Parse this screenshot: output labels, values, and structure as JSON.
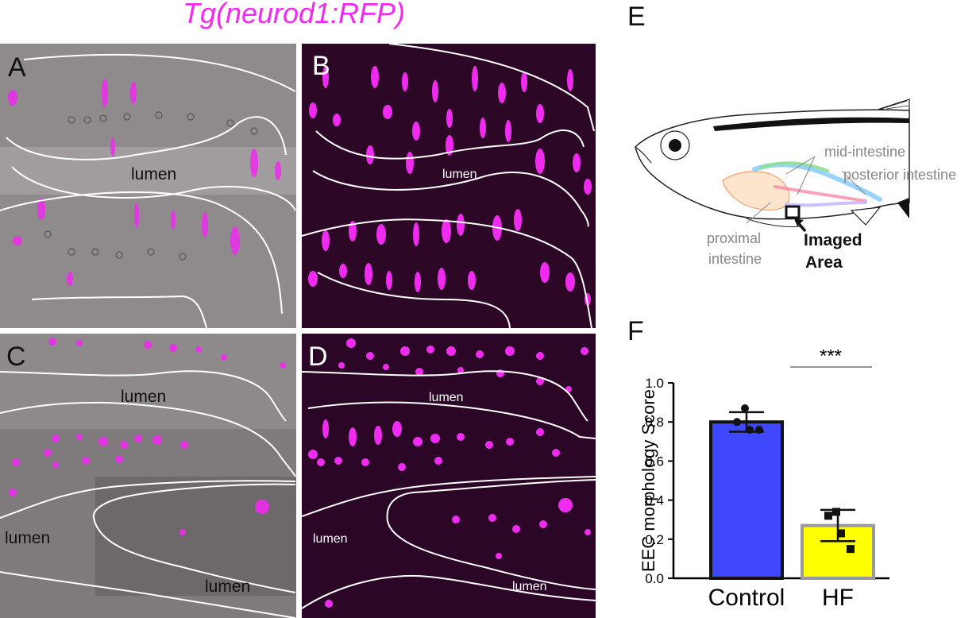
{
  "figure_title": "Tg(neurod1:RFP)",
  "panels": {
    "A": {
      "label": "A",
      "lumen": "lumen"
    },
    "B": {
      "label": "B",
      "lumen": "lumen"
    },
    "C": {
      "label": "C",
      "lumens": [
        "lumen",
        "lumen",
        "lumen"
      ]
    },
    "D": {
      "label": "D",
      "lumens": [
        "lumen",
        "lumen",
        "lumen"
      ]
    },
    "E": {
      "label": "E",
      "annotations": {
        "mid": "mid-intestine",
        "posterior": "posterior intestine",
        "proximal_1": "proximal",
        "proximal_2": "intestine",
        "imaged_1": "Imaged",
        "imaged_2": "Area"
      }
    },
    "F": {
      "label": "F"
    }
  },
  "colors": {
    "magenta": "#ee2bee",
    "control_bar": "#3f48ff",
    "hf_bar": "#ffff00"
  },
  "chart_data": {
    "type": "bar",
    "categories": [
      "Control",
      "HF"
    ],
    "values": [
      0.8,
      0.27
    ],
    "error": [
      0.05,
      0.08
    ],
    "points": [
      [
        0.87,
        0.8,
        0.76,
        0.76
      ],
      [
        0.34,
        0.32,
        0.23,
        0.15
      ]
    ],
    "ylabel": "EEC morphology Score",
    "ylim": [
      0,
      1.0
    ],
    "yticks": [
      "0.0",
      "0.2",
      "0.4",
      "0.6",
      "0.8",
      "1.0"
    ],
    "significance": "***"
  }
}
